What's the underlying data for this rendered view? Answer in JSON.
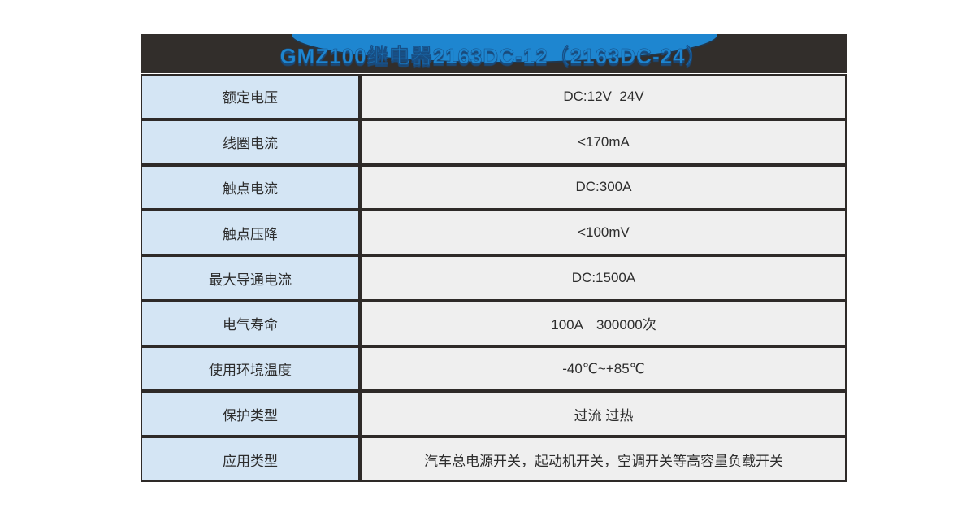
{
  "header": {
    "title": "GMZ100继电器2163DC-12（2163DC-24）",
    "colors": {
      "bar": "#322e2b",
      "ellipse": "#1e86d0",
      "title_text": "#1e86d0",
      "title_shadow": "#1a4a7a"
    }
  },
  "table": {
    "colors": {
      "border": "#2e2a28",
      "label_background": "#d4e5f4",
      "value_background": "#efefef",
      "text": "#2d2d2d"
    },
    "rows": [
      {
        "label": "额定电压",
        "value": "DC:12V  24V"
      },
      {
        "label": "线圈电流",
        "value": "<170mA"
      },
      {
        "label": "触点电流",
        "value": "DC:300A"
      },
      {
        "label": "触点压降",
        "value": "<100mV"
      },
      {
        "label": "最大导通电流",
        "value": "DC:1500A"
      },
      {
        "label": "电气寿命",
        "value": "100A　300000次"
      },
      {
        "label": "使用环境温度",
        "value": "-40℃~+85℃"
      },
      {
        "label": "保护类型",
        "value": "过流 过热"
      },
      {
        "label": "应用类型",
        "value": "汽车总电源开关，起动机开关，空调开关等高容量负载开关"
      }
    ]
  }
}
